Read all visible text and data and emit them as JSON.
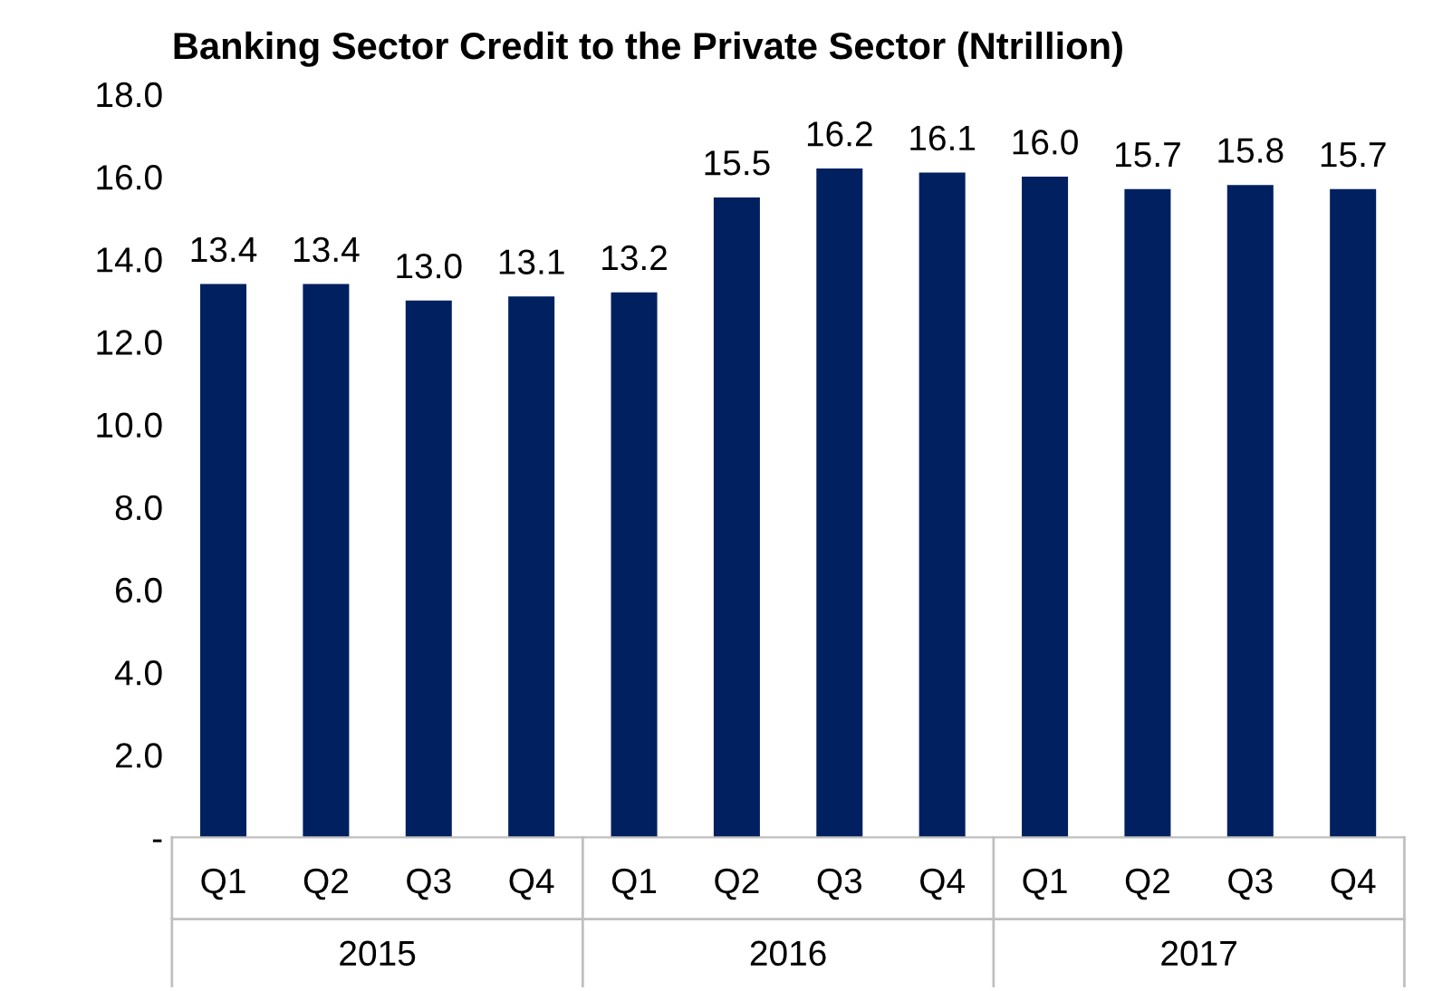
{
  "chart_data": {
    "type": "bar",
    "title": "Banking Sector Credit to the Private Sector (Ntrillion)",
    "categories": [
      "Q1",
      "Q2",
      "Q3",
      "Q4",
      "Q1",
      "Q2",
      "Q3",
      "Q4",
      "Q1",
      "Q2",
      "Q3",
      "Q4"
    ],
    "values": [
      13.4,
      13.4,
      13.0,
      13.1,
      13.2,
      15.5,
      16.2,
      16.1,
      16.0,
      15.7,
      15.8,
      15.7
    ],
    "value_labels": [
      "13.4",
      "13.4",
      "13.0",
      "13.1",
      "13.2",
      "15.5",
      "16.2",
      "16.1",
      "16.0",
      "15.7",
      "15.8",
      "15.7"
    ],
    "color": "#002060",
    "ylim": [
      0,
      18
    ],
    "yticks": [
      {
        "value": 0,
        "label": "-"
      },
      {
        "value": 2,
        "label": "2.0"
      },
      {
        "value": 4,
        "label": "4.0"
      },
      {
        "value": 6,
        "label": "6.0"
      },
      {
        "value": 8,
        "label": "8.0"
      },
      {
        "value": 10,
        "label": "10.0"
      },
      {
        "value": 12,
        "label": "12.0"
      },
      {
        "value": 14,
        "label": "14.0"
      },
      {
        "value": 16,
        "label": "16.0"
      },
      {
        "value": 18,
        "label": "18.0"
      }
    ],
    "annotations": [
      "2015",
      "2016",
      "2017"
    ],
    "grid": false
  }
}
